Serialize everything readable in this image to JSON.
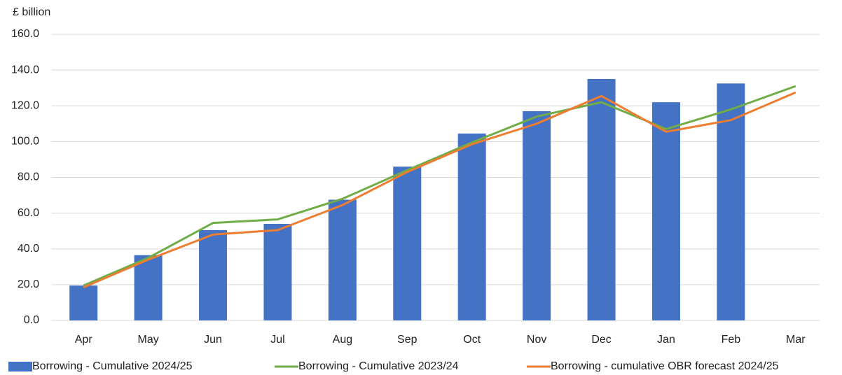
{
  "chart_data": {
    "type": "bar-line",
    "ylabel": "£ billion",
    "categories": [
      "Apr",
      "May",
      "Jun",
      "Jul",
      "Aug",
      "Sep",
      "Oct",
      "Nov",
      "Dec",
      "Jan",
      "Feb",
      "Mar"
    ],
    "series": [
      {
        "name": "Borrowing - Cumulative 2024/25",
        "type": "bar",
        "color": "#4472c4",
        "values": [
          19.5,
          36.5,
          50.5,
          54,
          67.5,
          86,
          104.5,
          117,
          135,
          122,
          132.5,
          null
        ]
      },
      {
        "name": "Borrowing - Cumulative 2023/24",
        "type": "line",
        "color": "#70ad47",
        "values": [
          19.5,
          35,
          54.5,
          56.5,
          68,
          84,
          99.5,
          114,
          122,
          107,
          118,
          131
        ]
      },
      {
        "name": "Borrowing - cumulative OBR forecast 2024/25",
        "type": "line",
        "color": "#ed7d31",
        "values": [
          18.5,
          34,
          48,
          50.5,
          64.5,
          83,
          98.5,
          110,
          125.5,
          105.5,
          112,
          127.5
        ]
      }
    ],
    "ylim": [
      0,
      160
    ],
    "yticks": [
      {
        "value": 0,
        "label": "0.0"
      },
      {
        "value": 20,
        "label": "20.0"
      },
      {
        "value": 40,
        "label": "40.0"
      },
      {
        "value": 60,
        "label": "60.0"
      },
      {
        "value": 80,
        "label": "80.0"
      },
      {
        "value": 100,
        "label": "100.0"
      },
      {
        "value": 120,
        "label": "120.0"
      },
      {
        "value": 140,
        "label": "140.0"
      },
      {
        "value": 160,
        "label": "160.0"
      }
    ],
    "grid": true,
    "legend": "bottom"
  }
}
